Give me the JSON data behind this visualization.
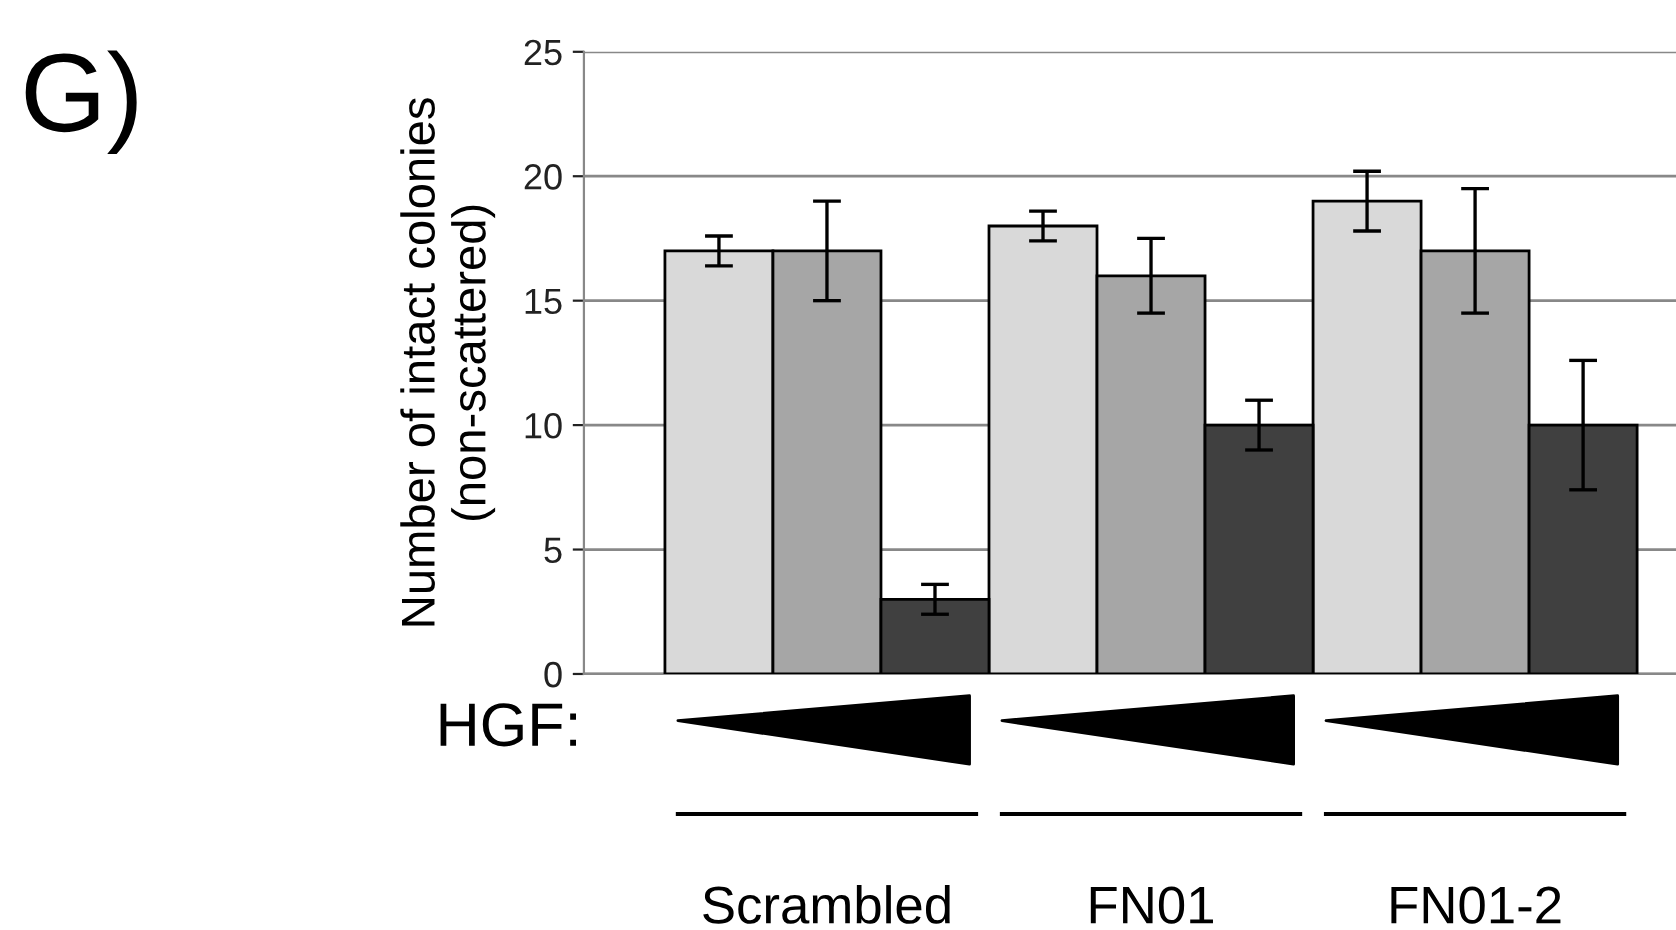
{
  "chart_data": {
    "type": "bar",
    "ylabel": "Number of intact colonies\n(non-scattered)",
    "categories": [
      "Scrambled",
      "FN01",
      "FN01-2"
    ],
    "series": [
      {
        "color": "#d9d9d9",
        "values": [
          17,
          18,
          19
        ],
        "errors": [
          0.6,
          0.6,
          1.2
        ]
      },
      {
        "color": "#a6a6a6",
        "values": [
          17,
          16,
          17
        ],
        "errors": [
          2,
          1.5,
          2.5
        ]
      },
      {
        "color": "#404040",
        "values": [
          3,
          10,
          10
        ],
        "errors": [
          0.6,
          1,
          2.6
        ]
      }
    ],
    "ylim": [
      0,
      25
    ],
    "yticks": [
      0,
      5,
      10,
      15,
      20,
      25
    ],
    "grid": "y",
    "annotations": [
      "G)",
      "HGF:"
    ]
  }
}
